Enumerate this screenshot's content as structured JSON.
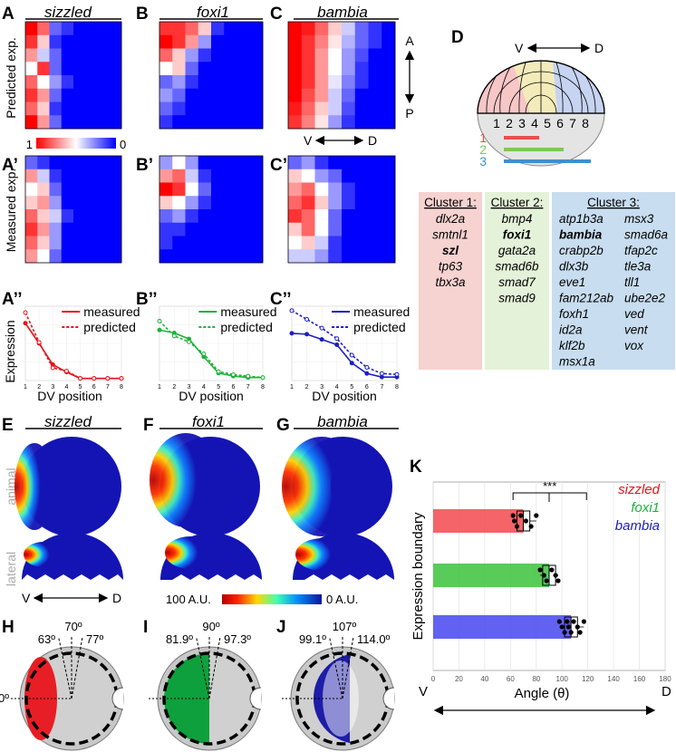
{
  "panels": {
    "A": "A",
    "B": "B",
    "C": "C",
    "D": "D",
    "A1": "A’",
    "B1": "B’",
    "C1": "C’",
    "A2": "A’’",
    "B2": "B’’",
    "C2": "C’’",
    "E": "E",
    "F": "F",
    "G": "G",
    "H": "H",
    "I": "I",
    "J": "J",
    "K": "K"
  },
  "genes": {
    "sizzled": "sizzled",
    "foxi1": "foxi1",
    "bambia": "bambia",
    "colors": {
      "sizzled": "#e8141b",
      "foxi1": "#1fb23a",
      "bambia": "#1d1dc8"
    }
  },
  "heatmap": {
    "predicted_label": "Predicted exp.",
    "measured_label": "Measured exp.",
    "scale_min": "0",
    "scale_max": "1",
    "axis_A": "A",
    "axis_P": "P",
    "axis_V": "V",
    "axis_D": "D",
    "predicted": {
      "sizzled": [
        [
          1,
          0.8,
          0.2,
          0.1,
          0,
          0,
          0,
          0
        ],
        [
          0.9,
          0.6,
          0.1,
          0,
          0,
          0,
          0,
          0
        ],
        [
          0.7,
          0.4,
          0.2,
          0,
          0,
          0,
          0,
          0
        ],
        [
          0.5,
          0.9,
          0.2,
          0,
          0,
          0,
          0,
          0
        ],
        [
          0.8,
          0.5,
          0.3,
          0.1,
          0,
          0,
          0,
          0
        ],
        [
          0.9,
          0.7,
          0.2,
          0,
          0,
          0,
          0,
          0
        ],
        [
          0.8,
          0.6,
          0.1,
          0,
          0,
          0,
          0,
          0
        ],
        [
          1,
          0.7,
          0.2,
          0,
          0,
          0,
          0,
          0
        ]
      ],
      "foxi1": [
        [
          0.9,
          0.9,
          0.8,
          0.6,
          0.1,
          0,
          0,
          0
        ],
        [
          1,
          0.9,
          0.7,
          0.3,
          0,
          0,
          0,
          0
        ],
        [
          0.8,
          0.6,
          0.3,
          0.1,
          0,
          0,
          0,
          0
        ],
        [
          0.5,
          0.6,
          0.2,
          0,
          0,
          0,
          0,
          0
        ],
        [
          0.2,
          0.3,
          0.1,
          0,
          0,
          0,
          0,
          0
        ],
        [
          0.3,
          0.2,
          0,
          0,
          0,
          0,
          0,
          0
        ],
        [
          0.2,
          0.1,
          0,
          0,
          0,
          0,
          0,
          0
        ],
        [
          0.1,
          0,
          0,
          0,
          0,
          0,
          0,
          0
        ]
      ],
      "bambia": [
        [
          1,
          0.95,
          0.8,
          0.6,
          0.4,
          0.2,
          0.1,
          0
        ],
        [
          1,
          0.9,
          0.75,
          0.55,
          0.35,
          0.2,
          0.1,
          0
        ],
        [
          1,
          0.9,
          0.7,
          0.5,
          0.3,
          0.15,
          0,
          0
        ],
        [
          1,
          0.9,
          0.7,
          0.5,
          0.3,
          0.1,
          0,
          0
        ],
        [
          1,
          0.9,
          0.7,
          0.45,
          0.25,
          0.1,
          0,
          0
        ],
        [
          1,
          0.85,
          0.7,
          0.4,
          0.2,
          0,
          0,
          0
        ],
        [
          0.95,
          0.8,
          0.6,
          0.4,
          0.15,
          0,
          0,
          0
        ],
        [
          0.9,
          0.75,
          0.55,
          0.3,
          0.1,
          0,
          0,
          0
        ]
      ]
    },
    "measured": {
      "sizzled": [
        [
          0.2,
          0.1,
          0,
          0,
          0,
          0,
          0,
          0
        ],
        [
          0.7,
          0.4,
          0.1,
          0,
          0,
          0,
          0,
          0
        ],
        [
          0.5,
          0.6,
          0.2,
          0,
          0,
          0,
          0,
          0
        ],
        [
          0.6,
          0.7,
          0.3,
          0,
          0,
          0,
          0,
          0
        ],
        [
          0.8,
          0.6,
          0.4,
          0.1,
          0,
          0,
          0,
          0
        ],
        [
          0.9,
          0.7,
          0.3,
          0,
          0,
          0,
          0,
          0
        ],
        [
          0.8,
          0.6,
          0.3,
          0,
          0,
          0,
          0,
          0
        ],
        [
          0.7,
          0.5,
          0.2,
          0,
          0,
          0,
          0,
          0
        ]
      ],
      "foxi1": [
        [
          0.3,
          0.5,
          0.3,
          0,
          0,
          0,
          0,
          0
        ],
        [
          0.7,
          0.8,
          0.4,
          0.1,
          0,
          0,
          0,
          0
        ],
        [
          1,
          0.9,
          0.5,
          0.2,
          0,
          0,
          0,
          0
        ],
        [
          0.6,
          0.5,
          0.3,
          0.1,
          0,
          0,
          0,
          0
        ],
        [
          0.2,
          0.3,
          0.1,
          0,
          0,
          0,
          0,
          0
        ],
        [
          0.1,
          0.1,
          0,
          0,
          0,
          0,
          0,
          0
        ],
        [
          0.1,
          0,
          0,
          0,
          0,
          0,
          0,
          0
        ],
        [
          0,
          0,
          0,
          0,
          0,
          0,
          0,
          0
        ]
      ],
      "bambia": [
        [
          0.2,
          0.3,
          0.1,
          0,
          0,
          0,
          0,
          0
        ],
        [
          0.6,
          0.5,
          0.3,
          0.2,
          0,
          0,
          0,
          0
        ],
        [
          0.7,
          0.8,
          0.5,
          0.3,
          0.1,
          0,
          0,
          0
        ],
        [
          0.8,
          0.9,
          0.6,
          0.3,
          0.1,
          0,
          0,
          0
        ],
        [
          0.9,
          0.8,
          0.5,
          0.2,
          0,
          0,
          0,
          0
        ],
        [
          0.6,
          0.8,
          0.5,
          0.2,
          0,
          0,
          0,
          0
        ],
        [
          0.5,
          0.6,
          0.4,
          0.1,
          0,
          0,
          0,
          0
        ],
        [
          0.4,
          0.4,
          0.3,
          0.1,
          0,
          0,
          0,
          0
        ]
      ]
    }
  },
  "lineplots": {
    "ylabel": "Expression",
    "xlabel": "DV position",
    "legend_measured": "measured",
    "legend_predicted": "predicted",
    "x": [
      1,
      2,
      3,
      4,
      5,
      6,
      7,
      8
    ],
    "xticks": [
      "1",
      "2",
      "3",
      "4",
      "5",
      "6",
      "7",
      "8"
    ],
    "series": {
      "sizzled": {
        "measured": [
          5.4,
          3.5,
          1.5,
          0.8,
          0.2,
          0.2,
          0.2,
          0.2
        ],
        "predicted": [
          6.4,
          3.6,
          1.2,
          0.9,
          0.2,
          0.2,
          0.2,
          0.2
        ],
        "ymax": 7
      },
      "foxi1": {
        "measured": [
          3.4,
          3.2,
          2.8,
          1.6,
          0.5,
          0.3,
          0.2,
          0.2
        ],
        "predicted": [
          4.0,
          3.0,
          2.6,
          1.8,
          0.6,
          0.4,
          0.3,
          0.2
        ],
        "ymax": 5
      },
      "bambia": {
        "measured": [
          5.4,
          5.3,
          4.7,
          4.1,
          2.0,
          0.8,
          0.4,
          0.4
        ],
        "predicted": [
          8.0,
          7.0,
          6.0,
          4.8,
          2.9,
          1.5,
          0.8,
          0.7
        ],
        "ymax": 8.5
      }
    }
  },
  "embryo": {
    "D_V": "V",
    "D_D": "D",
    "bins": [
      "1",
      "2",
      "3",
      "4",
      "5",
      "6",
      "7",
      "8"
    ],
    "clusters_bar": [
      "1",
      "2",
      "3"
    ],
    "clusters": [
      {
        "title": "Cluster 1:",
        "color": "#f6d2d0",
        "genes": [
          "dlx2a",
          "smtnl1",
          "szl",
          "tp63",
          "tbx3a"
        ],
        "bold": "szl"
      },
      {
        "title": "Cluster 2:",
        "color": "#e3f2d8",
        "genes": [
          "bmp4",
          "foxi1",
          "gata2a",
          "smad6b",
          "smad7",
          "smad9"
        ],
        "bold": "foxi1"
      },
      {
        "title": "Cluster 3:",
        "color": "#c8ddf0",
        "genes": [
          "atp1b3a",
          "bambia",
          "crabp2b",
          "dlx3b",
          "eve1",
          "fam212ab",
          "foxh1",
          "id2a",
          "klf2b",
          "msx1a",
          "msx3",
          "smad6a",
          "tfap2c",
          "tle3a",
          "tll1",
          "ube2e2",
          "ved",
          "vent",
          "vox"
        ],
        "bold": "bambia"
      }
    ]
  },
  "views": {
    "animal": "animal",
    "lateral": "lateral",
    "V": "V",
    "D": "D",
    "scale_left": "100 A.U.",
    "scale_right": "0 A.U."
  },
  "angles": {
    "H": {
      "a": "63º",
      "b": "70º",
      "c": "77º",
      "zero": "0º"
    },
    "I": {
      "a": "81.9º",
      "b": "90º",
      "c": "97.3º"
    },
    "J": {
      "a": "99.1º",
      "b": "107º",
      "c": "114.0º"
    }
  },
  "chart_data": {
    "type": "bar",
    "ylabel": "Expression boundary",
    "xlabel": "Angle (θ)",
    "xlim": [
      0,
      180
    ],
    "xticks": [
      "0",
      "20",
      "40",
      "60",
      "80",
      "100",
      "120",
      "140",
      "160",
      "180"
    ],
    "x_left": "V",
    "x_right": "D",
    "significance": "***",
    "series": [
      {
        "name": "sizzled",
        "value": 70,
        "color": "#f2494d",
        "points": [
          62,
          63,
          65,
          68,
          72,
          76,
          80
        ]
      },
      {
        "name": "foxi1",
        "value": 90,
        "color": "#3cc23c",
        "points": [
          83,
          86,
          88,
          92,
          95,
          97
        ]
      },
      {
        "name": "bambia",
        "value": 107,
        "color": "#4646f0",
        "points": [
          98,
          100,
          102,
          104,
          105,
          107,
          109,
          112,
          114,
          117
        ]
      }
    ]
  }
}
